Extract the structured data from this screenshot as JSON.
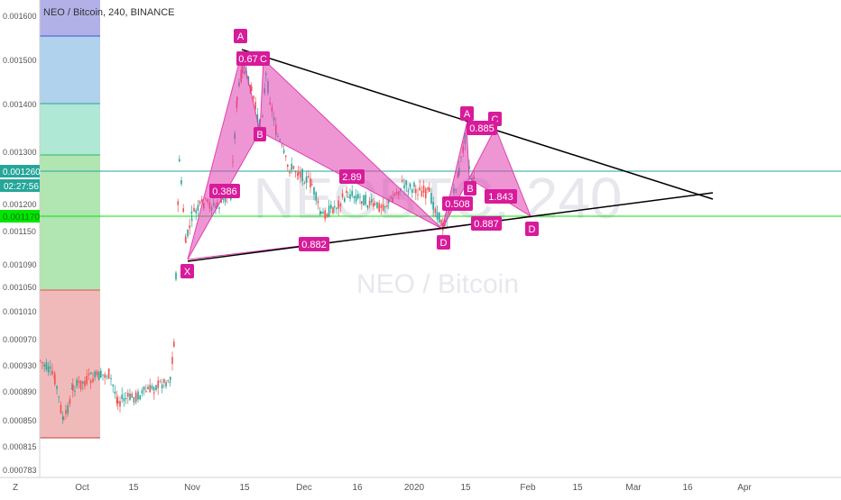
{
  "header": {
    "title": "NEO / Bitcoin, 240, BINANCE"
  },
  "watermark": {
    "big": "NEOBTC, 240",
    "small": "NEO / Bitcoin"
  },
  "price_axis": {
    "ticks": [
      "0.001600",
      "0.001500",
      "0.001400",
      "0.001300",
      "0.001200",
      "0.001150",
      "0.001090",
      "0.001050",
      "0.001010",
      "0.000970",
      "0.000930",
      "0.000890",
      "0.000850",
      "0.000815",
      "0.000783"
    ]
  },
  "time_axis": {
    "ticks": [
      "Oct",
      "15",
      "Nov",
      "15",
      "Dec",
      "16",
      "2020",
      "15",
      "Feb",
      "15",
      "Mar",
      "16",
      "Apr"
    ],
    "corner_label": "Z"
  },
  "price_tags": {
    "last_price": "0.001260",
    "countdown": "02:27:56",
    "green_level": "0.001170"
  },
  "colors": {
    "pattern_fill": "#e040b0",
    "pattern_label": "#d81b9a",
    "candle_up": "#26a69a",
    "candle_down": "#ef5350",
    "trendline": "#000000",
    "last_price_line": "#26a69a",
    "green_line": "#00e600"
  },
  "chart_data": {
    "type": "candlestick",
    "title": "NEO / Bitcoin, 240, BINANCE",
    "price_range": [
      0.00077,
      0.00164
    ],
    "pattern_labels": [
      {
        "text": "A"
      },
      {
        "text": "0.67"
      },
      {
        "text": "C"
      },
      {
        "text": "B"
      },
      {
        "text": "0.386"
      },
      {
        "text": "X"
      },
      {
        "text": "0.882"
      },
      {
        "text": "2.89"
      },
      {
        "text": "D"
      },
      {
        "text": "A"
      },
      {
        "text": "C"
      },
      {
        "text": "0.885"
      },
      {
        "text": "B"
      },
      {
        "text": "0.508"
      },
      {
        "text": "1.843"
      },
      {
        "text": "0.887"
      },
      {
        "text": "D"
      }
    ]
  }
}
